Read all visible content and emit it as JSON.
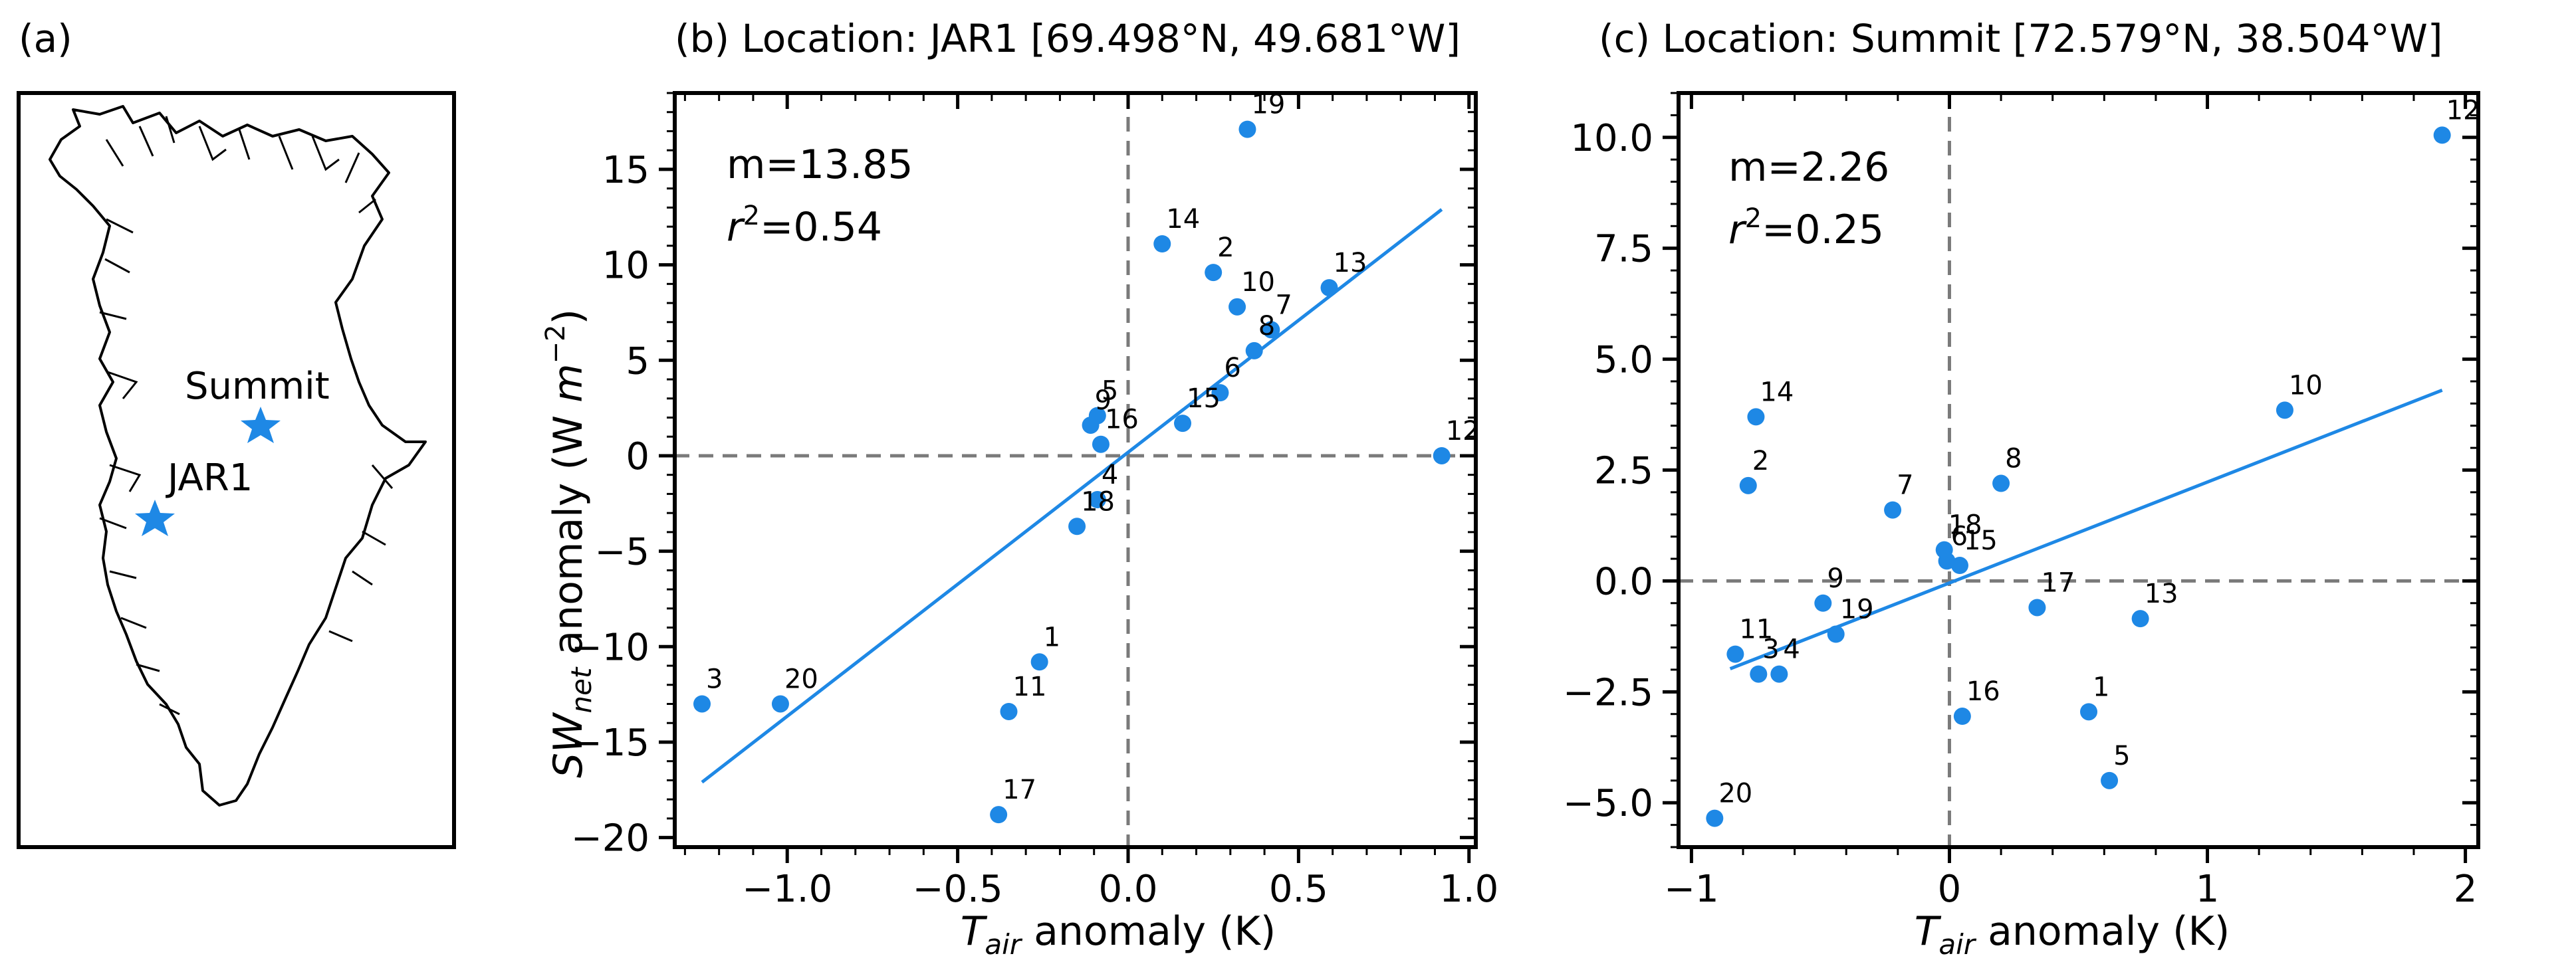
{
  "colors": {
    "point": "#1e88e5",
    "fit_line": "#1e88e5",
    "zero_line": "#7a7a7a",
    "map_outline": "#000000"
  },
  "panel_a": {
    "label": "(a)",
    "sites": [
      {
        "name": "Summit",
        "icon": "star-icon"
      },
      {
        "name": "JAR1",
        "icon": "star-icon"
      }
    ]
  },
  "chart_data": [
    {
      "type": "scatter",
      "panel": "(b)",
      "title": "(b) Location: JAR1 [69.498°N, 49.681°W]",
      "xlabel": "T_air anomaly (K)",
      "ylabel": "SW_net anomaly (W m^-2)",
      "xlim": [
        -1.33,
        1.02
      ],
      "ylim": [
        -20.5,
        19
      ],
      "xticks": [
        -1.0,
        -0.5,
        0.0,
        0.5,
        1.0
      ],
      "xtick_labels": [
        "−1.0",
        "−0.5",
        "0.0",
        "0.5",
        "1.0"
      ],
      "yticks": [
        -20,
        -15,
        -10,
        -5,
        0,
        5,
        10,
        15
      ],
      "ytick_labels": [
        "−20",
        "−15",
        "−10",
        "−5",
        "0",
        "5",
        "10",
        "15"
      ],
      "annotation": {
        "slope_text": "m=13.85",
        "r2_value": "=0.54"
      },
      "zero_lines": true,
      "points": [
        {
          "label": "1",
          "x": -0.26,
          "y": -10.8
        },
        {
          "label": "2",
          "x": 0.25,
          "y": 9.6
        },
        {
          "label": "3",
          "x": -1.25,
          "y": -13.0
        },
        {
          "label": "4",
          "x": -0.09,
          "y": -2.3
        },
        {
          "label": "5",
          "x": -0.09,
          "y": 2.1
        },
        {
          "label": "6",
          "x": 0.27,
          "y": 3.3
        },
        {
          "label": "7",
          "x": 0.42,
          "y": 6.6
        },
        {
          "label": "8",
          "x": 0.37,
          "y": 5.5
        },
        {
          "label": "9",
          "x": -0.11,
          "y": 1.6
        },
        {
          "label": "10",
          "x": 0.32,
          "y": 7.8
        },
        {
          "label": "11",
          "x": -0.35,
          "y": -13.4
        },
        {
          "label": "12",
          "x": 0.92,
          "y": 0.0
        },
        {
          "label": "13",
          "x": 0.59,
          "y": 8.8
        },
        {
          "label": "14",
          "x": 0.1,
          "y": 11.1
        },
        {
          "label": "15",
          "x": 0.16,
          "y": 1.7
        },
        {
          "label": "16",
          "x": -0.08,
          "y": 0.6
        },
        {
          "label": "17",
          "x": -0.38,
          "y": -18.8
        },
        {
          "label": "18",
          "x": -0.15,
          "y": -3.7
        },
        {
          "label": "19",
          "x": 0.35,
          "y": 17.1
        },
        {
          "label": "20",
          "x": -1.02,
          "y": -13.0
        }
      ],
      "fit_line": {
        "x": [
          -1.25,
          0.92
        ],
        "y": [
          -17.1,
          12.9
        ]
      }
    },
    {
      "type": "scatter",
      "panel": "(c)",
      "title": "(c) Location: Summit [72.579°N, 38.504°W]",
      "xlabel": "T_air anomaly (K)",
      "ylabel": "",
      "xlim": [
        -1.05,
        2.05
      ],
      "ylim": [
        -6.0,
        11.0
      ],
      "xticks": [
        -1,
        0,
        1,
        2
      ],
      "xtick_labels": [
        "−1",
        "0",
        "1",
        "2"
      ],
      "yticks": [
        -5.0,
        -2.5,
        0.0,
        2.5,
        5.0,
        7.5,
        10.0
      ],
      "ytick_labels": [
        "−5.0",
        "−2.5",
        "0.0",
        "2.5",
        "5.0",
        "7.5",
        "10.0"
      ],
      "annotation": {
        "slope_text": "m=2.26",
        "r2_value": "=0.25"
      },
      "zero_lines": true,
      "points": [
        {
          "label": "1",
          "x": 0.54,
          "y": -2.95
        },
        {
          "label": "2",
          "x": -0.78,
          "y": 2.15
        },
        {
          "label": "3",
          "x": -0.74,
          "y": -2.1
        },
        {
          "label": "4",
          "x": -0.66,
          "y": -2.1
        },
        {
          "label": "5",
          "x": 0.62,
          "y": -4.5
        },
        {
          "label": "6",
          "x": -0.01,
          "y": 0.45
        },
        {
          "label": "7",
          "x": -0.22,
          "y": 1.6
        },
        {
          "label": "8",
          "x": 0.2,
          "y": 2.2
        },
        {
          "label": "9",
          "x": -0.49,
          "y": -0.5
        },
        {
          "label": "10",
          "x": 1.3,
          "y": 3.85
        },
        {
          "label": "11",
          "x": -0.83,
          "y": -1.65
        },
        {
          "label": "12",
          "x": 1.91,
          "y": 10.05
        },
        {
          "label": "13",
          "x": 0.74,
          "y": -0.85
        },
        {
          "label": "14",
          "x": -0.75,
          "y": 3.7
        },
        {
          "label": "15",
          "x": 0.04,
          "y": 0.35
        },
        {
          "label": "16",
          "x": 0.05,
          "y": -3.05
        },
        {
          "label": "17",
          "x": 0.34,
          "y": -0.6
        },
        {
          "label": "18",
          "x": -0.02,
          "y": 0.7
        },
        {
          "label": "19",
          "x": -0.44,
          "y": -1.2
        },
        {
          "label": "20",
          "x": -0.91,
          "y": -5.35
        }
      ],
      "fit_line": {
        "x": [
          -0.85,
          1.91
        ],
        "y": [
          -1.98,
          4.3
        ]
      }
    }
  ]
}
